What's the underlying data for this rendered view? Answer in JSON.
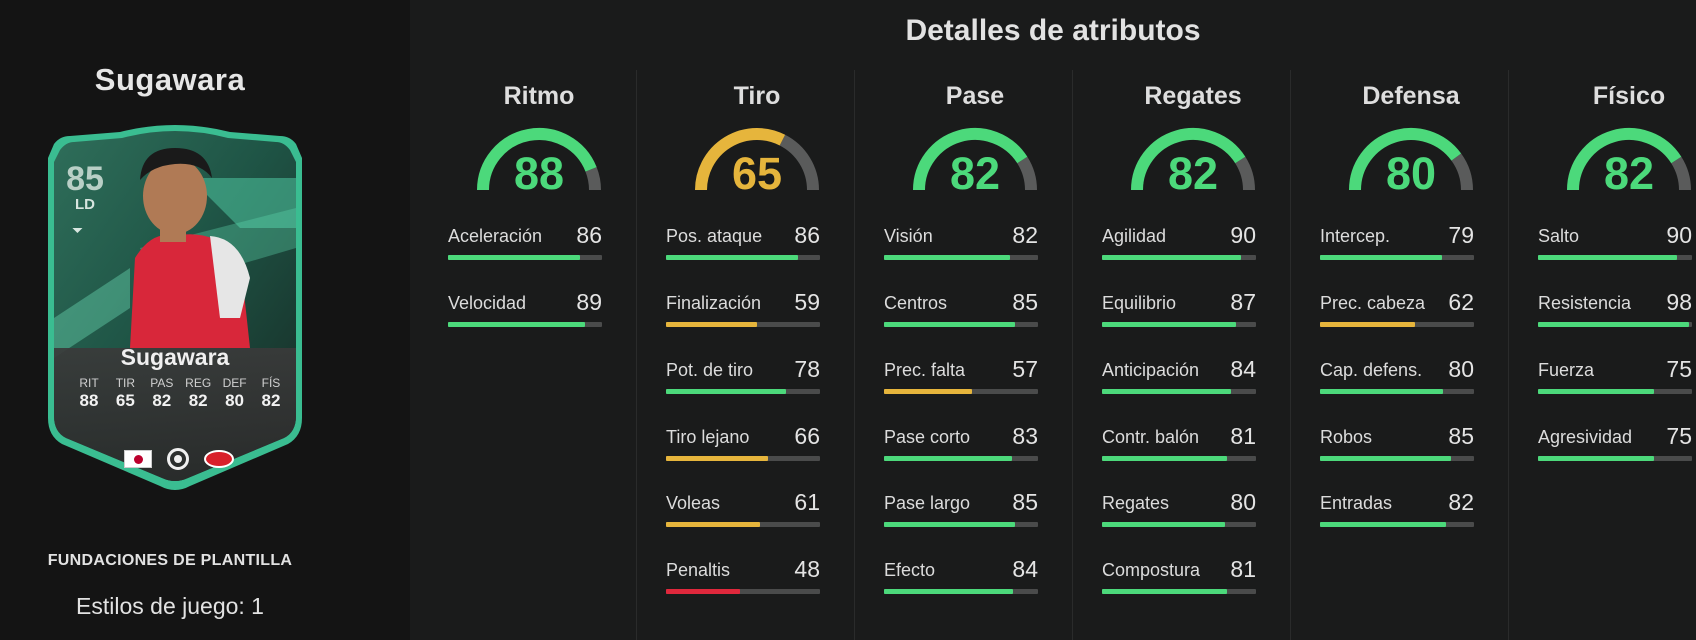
{
  "player": {
    "name": "Sugawara",
    "promo": "FUNDACIONES DE PLANTILLA",
    "playstyles": "Estilos de juego: 1"
  },
  "card": {
    "rating": "85",
    "position": "LD",
    "name": "Sugawara",
    "stats": [
      {
        "label": "RIT",
        "value": "88"
      },
      {
        "label": "TIR",
        "value": "65"
      },
      {
        "label": "PAS",
        "value": "82"
      },
      {
        "label": "REG",
        "value": "82"
      },
      {
        "label": "DEF",
        "value": "80"
      },
      {
        "label": "FÍS",
        "value": "82"
      }
    ],
    "nation_icon": "japan-flag-icon",
    "league_icon": "eredivisie-logo-icon",
    "club_icon": "az-alkmaar-logo-icon"
  },
  "details_title": "Detalles de atributos",
  "colors": {
    "green": "#4cd97b",
    "yellow": "#e6b53c",
    "red": "#e0283c",
    "track": "#4a4b4b"
  },
  "categories": [
    {
      "title": "Ritmo",
      "value": 88,
      "attributes": [
        {
          "name": "Aceleración",
          "value": 86
        },
        {
          "name": "Velocidad",
          "value": 89
        }
      ]
    },
    {
      "title": "Tiro",
      "value": 65,
      "attributes": [
        {
          "name": "Pos. ataque",
          "value": 86
        },
        {
          "name": "Finalización",
          "value": 59
        },
        {
          "name": "Pot. de tiro",
          "value": 78
        },
        {
          "name": "Tiro lejano",
          "value": 66
        },
        {
          "name": "Voleas",
          "value": 61
        },
        {
          "name": "Penaltis",
          "value": 48
        }
      ]
    },
    {
      "title": "Pase",
      "value": 82,
      "attributes": [
        {
          "name": "Visión",
          "value": 82
        },
        {
          "name": "Centros",
          "value": 85
        },
        {
          "name": "Prec. falta",
          "value": 57
        },
        {
          "name": "Pase corto",
          "value": 83
        },
        {
          "name": "Pase largo",
          "value": 85
        },
        {
          "name": "Efecto",
          "value": 84
        }
      ]
    },
    {
      "title": "Regates",
      "value": 82,
      "attributes": [
        {
          "name": "Agilidad",
          "value": 90
        },
        {
          "name": "Equilibrio",
          "value": 87
        },
        {
          "name": "Anticipación",
          "value": 84
        },
        {
          "name": "Contr. balón",
          "value": 81
        },
        {
          "name": "Regates",
          "value": 80
        },
        {
          "name": "Compostura",
          "value": 81
        }
      ]
    },
    {
      "title": "Defensa",
      "value": 80,
      "attributes": [
        {
          "name": "Intercep.",
          "value": 79
        },
        {
          "name": "Prec. cabeza",
          "value": 62
        },
        {
          "name": "Cap. defens.",
          "value": 80
        },
        {
          "name": "Robos",
          "value": 85
        },
        {
          "name": "Entradas",
          "value": 82
        }
      ]
    },
    {
      "title": "Físico",
      "value": 82,
      "attributes": [
        {
          "name": "Salto",
          "value": 90
        },
        {
          "name": "Resistencia",
          "value": 98
        },
        {
          "name": "Fuerza",
          "value": 75
        },
        {
          "name": "Agresividad",
          "value": 75
        }
      ]
    }
  ]
}
